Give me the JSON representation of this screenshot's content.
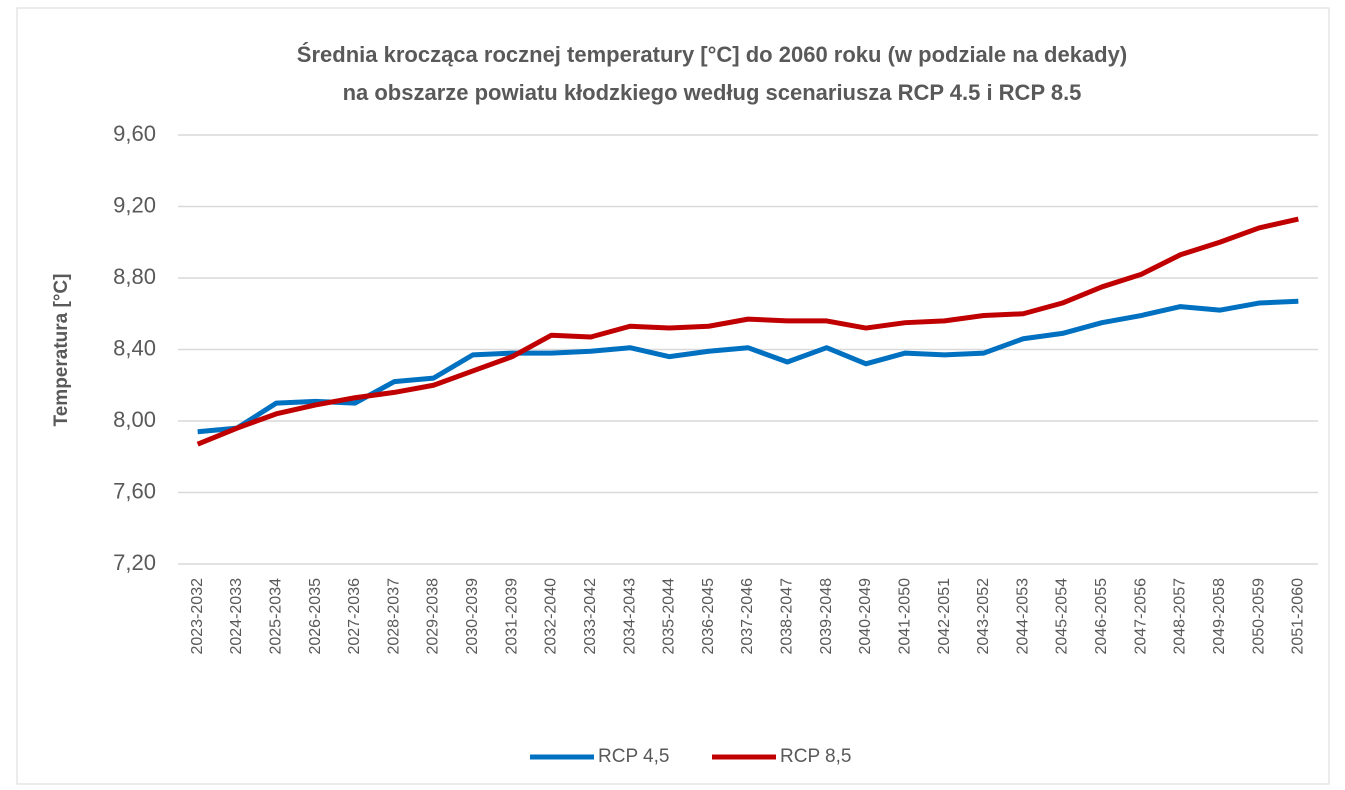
{
  "chart_data": {
    "type": "line",
    "title": [
      "Średnia krocząca rocznej temperatury [°C] do 2060 roku (w podziale na dekady)",
      "na obszarze powiatu kłodzkiego według scenariusza RCP 4.5 i RCP 8.5"
    ],
    "y_label": "Temperatura [°C]",
    "categories": [
      "2023-2032",
      "2024-2033",
      "2025-2034",
      "2026-2035",
      "2027-2036",
      "2028-2037",
      "2029-2038",
      "2030-2039",
      "2031-2039",
      "2032-2040",
      "2033-2042",
      "2034-2043",
      "2035-2044",
      "2036-2045",
      "2037-2046",
      "2038-2047",
      "2039-2048",
      "2040-2049",
      "2041-2050",
      "2042-2051",
      "2043-2052",
      "2044-2053",
      "2045-2054",
      "2046-2055",
      "2047-2056",
      "2048-2057",
      "2049-2058",
      "2050-2059",
      "2051-2060"
    ],
    "series": [
      {
        "name": "RCP 4,5",
        "color": "#0070c0",
        "values": [
          7.94,
          7.96,
          8.1,
          8.11,
          8.1,
          8.22,
          8.24,
          8.37,
          8.38,
          8.38,
          8.39,
          8.41,
          8.36,
          8.39,
          8.41,
          8.33,
          8.41,
          8.32,
          8.38,
          8.37,
          8.38,
          8.46,
          8.49,
          8.55,
          8.59,
          8.64,
          8.62,
          8.66,
          8.67
        ]
      },
      {
        "name": "RCP 8,5",
        "color": "#c00000",
        "values": [
          7.87,
          7.96,
          8.04,
          8.09,
          8.13,
          8.16,
          8.2,
          8.28,
          8.36,
          8.48,
          8.47,
          8.53,
          8.52,
          8.53,
          8.57,
          8.56,
          8.56,
          8.52,
          8.55,
          8.56,
          8.59,
          8.6,
          8.66,
          8.75,
          8.82,
          8.93,
          9.0,
          9.08,
          9.13
        ]
      }
    ],
    "ylim": [
      7.2,
      9.6
    ],
    "yticks": [
      {
        "value": 7.2,
        "label": "7,20"
      },
      {
        "value": 7.6,
        "label": "7,60"
      },
      {
        "value": 8.0,
        "label": "8,00"
      },
      {
        "value": 8.4,
        "label": "8,40"
      },
      {
        "value": 8.8,
        "label": "8,80"
      },
      {
        "value": 9.2,
        "label": "9,20"
      },
      {
        "value": 9.6,
        "label": "9,60"
      }
    ],
    "grid": true,
    "legend": "bottom"
  }
}
